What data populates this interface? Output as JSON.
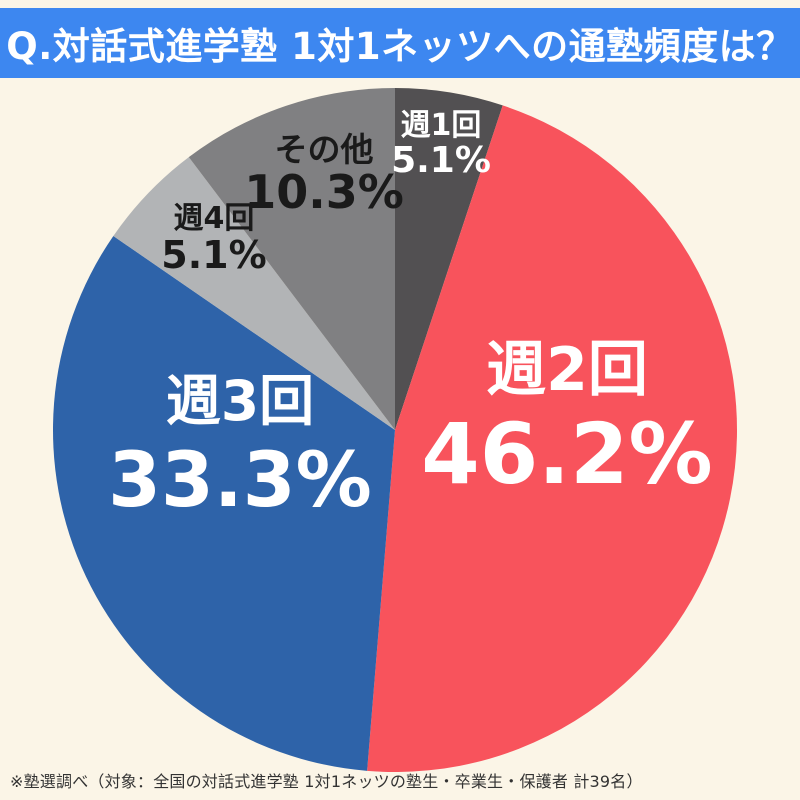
{
  "page_bg": "#FBF5E7",
  "header": {
    "title": "Q.対話式進学塾 1対1ネッツへの通塾頻度は？",
    "bg_color": "#3D87F0",
    "text_color": "#FFFFFF"
  },
  "chart_data": {
    "type": "pie",
    "title": "対話式進学塾 1対1ネッツへの通塾頻度",
    "direction": "clockwise",
    "start_angle_deg": 0,
    "legend": "none",
    "slices": [
      {
        "label": "週1回",
        "value": 5.1,
        "display": "5.1%",
        "color": "#525052",
        "label_color": "#FFFFFF"
      },
      {
        "label": "週2回",
        "value": 46.2,
        "display": "46.2%",
        "color": "#F8535C",
        "label_color": "#FFFFFF"
      },
      {
        "label": "週3回",
        "value": 33.3,
        "display": "33.3%",
        "color": "#2E63A9",
        "label_color": "#FFFFFF"
      },
      {
        "label": "週4回",
        "value": 5.1,
        "display": "5.1%",
        "color": "#B2B4B6",
        "label_color": "#1A1A1A"
      },
      {
        "label": "その他",
        "value": 10.3,
        "display": "10.3%",
        "color": "#808082",
        "label_color": "#1A1A1A"
      }
    ]
  },
  "footer": {
    "note": "※塾選調べ（対象：全国の対話式進学塾 1対1ネッツの塾生・卒業生・保護者 計39名）"
  }
}
